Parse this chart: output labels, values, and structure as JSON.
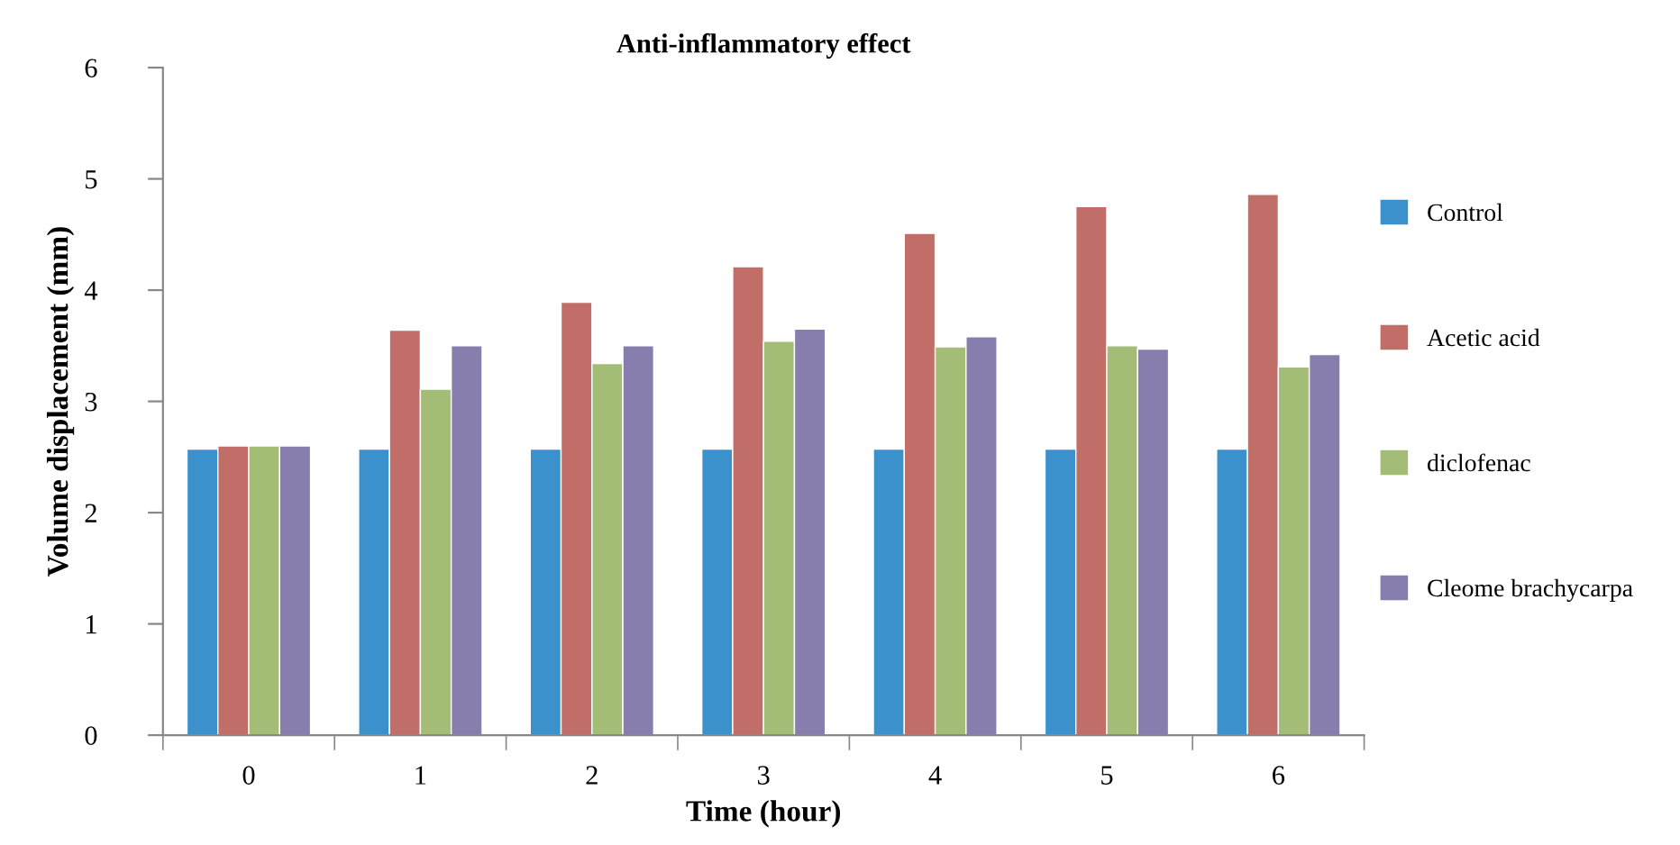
{
  "chart_data": {
    "type": "bar",
    "title": "Anti-inflammatory effect",
    "xlabel": "Time (hour)",
    "ylabel": "Volume displacement (mm)",
    "categories": [
      "0",
      "1",
      "2",
      "3",
      "4",
      "5",
      "6"
    ],
    "series": [
      {
        "name": "Control",
        "color": "#3a91cb",
        "values": [
          2.57,
          2.57,
          2.57,
          2.57,
          2.57,
          2.57,
          2.57
        ]
      },
      {
        "name": "Acetic acid",
        "color": "#c16e68",
        "values": [
          2.6,
          3.64,
          3.89,
          4.21,
          4.51,
          4.75,
          4.86
        ]
      },
      {
        "name": "diclofenac",
        "color": "#a3bd77",
        "values": [
          2.6,
          3.11,
          3.34,
          3.54,
          3.49,
          3.5,
          3.31
        ]
      },
      {
        "name": "Cleome brachycarpa",
        "color": "#887eae",
        "values": [
          2.6,
          3.5,
          3.5,
          3.65,
          3.58,
          3.47,
          3.42
        ]
      }
    ],
    "ylim": [
      0,
      6
    ],
    "yticks": [
      0,
      1,
      2,
      3,
      4,
      5,
      6
    ],
    "grid": false,
    "legend": "right"
  }
}
